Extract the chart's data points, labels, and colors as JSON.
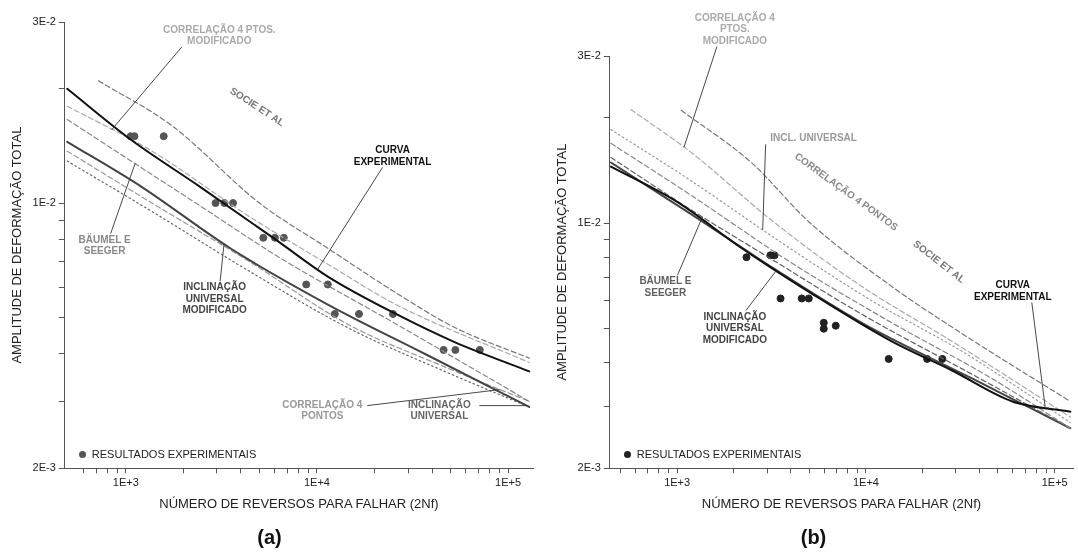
{
  "chart_data": [
    {
      "type": "line",
      "title": "(a)",
      "xlabel": "NÚMERO DE REVERSOS PARA FALHAR (2Nf)",
      "ylabel": "AMPLITUDE DE DEFORMAÇÃO TOTAL",
      "log": "xy",
      "legend": "bottom left",
      "xlim": [
        480,
        135000
      ],
      "ylim": [
        0.002,
        0.03
      ],
      "xticks": [
        {
          "value": 600,
          "label": null
        },
        {
          "value": 700,
          "label": null
        },
        {
          "value": 800,
          "label": null
        },
        {
          "value": 900,
          "label": null
        },
        {
          "value": 1000,
          "label": "1E+3"
        },
        {
          "value": 2000,
          "label": null
        },
        {
          "value": 3000,
          "label": null
        },
        {
          "value": 4000,
          "label": null
        },
        {
          "value": 5000,
          "label": null
        },
        {
          "value": 6000,
          "label": null
        },
        {
          "value": 7000,
          "label": null
        },
        {
          "value": 8000,
          "label": null
        },
        {
          "value": 9000,
          "label": null
        },
        {
          "value": 10000,
          "label": "1E+4"
        },
        {
          "value": 20000,
          "label": null
        },
        {
          "value": 30000,
          "label": null
        },
        {
          "value": 40000,
          "label": null
        },
        {
          "value": 50000,
          "label": null
        },
        {
          "value": 60000,
          "label": null
        },
        {
          "value": 70000,
          "label": null
        },
        {
          "value": 80000,
          "label": null
        },
        {
          "value": 90000,
          "label": null
        },
        {
          "value": 100000,
          "label": "1E+5"
        }
      ],
      "yticks": [
        {
          "value": 0.002,
          "label": "2E-3"
        },
        {
          "value": 0.003,
          "label": null
        },
        {
          "value": 0.004,
          "label": null
        },
        {
          "value": 0.005,
          "label": null
        },
        {
          "value": 0.006,
          "label": null
        },
        {
          "value": 0.007,
          "label": null
        },
        {
          "value": 0.008,
          "label": null
        },
        {
          "value": 0.009,
          "label": null
        },
        {
          "value": 0.01,
          "label": "1E-2"
        },
        {
          "value": 0.02,
          "label": null
        },
        {
          "value": 0.03,
          "label": "3E-2"
        }
      ],
      "series": [
        {
          "name": "CURVA EXPERIMENTAL",
          "type": "line",
          "color": "#111111",
          "line_style": "solid",
          "x": [
            494,
            1060,
            2470,
            6320,
            11400,
            25900,
            52500,
            129000
          ],
          "values": [
            0.02,
            0.0147,
            0.011,
            0.0079,
            0.0064,
            0.0051,
            0.0043,
            0.0036
          ]
        },
        {
          "name": "SOCIE ET AL",
          "type": "line",
          "color": "#777777",
          "line_style": "dashed",
          "x": [
            720,
            1740,
            5000,
            11400,
            25900,
            52500,
            129000
          ],
          "values": [
            0.021,
            0.016,
            0.01,
            0.0076,
            0.0058,
            0.0047,
            0.0039
          ]
        },
        {
          "name": "CORRELAÇÃO 4 PTOS. MODIFICADO",
          "type": "line",
          "color": "#aaaaaa",
          "line_style": "dashed",
          "x": [
            494,
            1370,
            4450,
            11400,
            25900,
            129000
          ],
          "values": [
            0.018,
            0.0137,
            0.0092,
            0.0069,
            0.0054,
            0.0038
          ]
        },
        {
          "name": "BÄUMEL E SEEGER",
          "type": "line",
          "color": "#888888",
          "line_style": "dashed",
          "x": [
            494,
            2470,
            6320,
            25900,
            129000
          ],
          "values": [
            0.0166,
            0.0098,
            0.0072,
            0.0048,
            0.003
          ]
        },
        {
          "name": "INCLINAÇÃO UNIVERSAL MODIFICADO",
          "type": "line",
          "color": "#444444",
          "line_style": "solid",
          "x": [
            494,
            1220,
            3520,
            11400,
            36800,
            129000
          ],
          "values": [
            0.0145,
            0.011,
            0.0076,
            0.0054,
            0.004,
            0.0029
          ]
        },
        {
          "name": "CORRELAÇÃO 4 PONTOS",
          "type": "line",
          "color": "#999999",
          "line_style": "dashed",
          "x": [
            494,
            1370,
            4450,
            14400,
            46500,
            129000
          ],
          "values": [
            0.0137,
            0.01,
            0.007,
            0.0048,
            0.0037,
            0.003
          ]
        },
        {
          "name": "INCLINAÇÃO UNIVERSAL",
          "type": "line",
          "color": "#666666",
          "line_style": "dotted",
          "x": [
            494,
            1370,
            4450,
            14400,
            46500,
            129000
          ],
          "values": [
            0.0129,
            0.0095,
            0.0066,
            0.0047,
            0.0036,
            0.0029
          ]
        },
        {
          "name": "RESULTADOS EXPERIMENTAIS",
          "type": "scatter",
          "color": "#555555",
          "marker": "circle",
          "x": [
            1060,
            1110,
            1580,
            2950,
            3280,
            3640,
            5240,
            6030,
            6710,
            8790,
            11400,
            12400,
            16600,
            25000,
            46000,
            53000,
            71100
          ],
          "values": [
            0.015,
            0.015,
            0.015,
            0.01,
            0.01,
            0.01,
            0.0081,
            0.0081,
            0.0081,
            0.0061,
            0.0061,
            0.0051,
            0.0051,
            0.0051,
            0.0041,
            0.0041,
            0.0041
          ]
        }
      ]
    },
    {
      "type": "line",
      "title": "(b)",
      "xlabel": "NÚMERO DE REVERSOS PARA FALHAR (2Nf)",
      "ylabel": "AMPLITUDE DE DEFORMAÇÃO TOTAL",
      "log": "xy",
      "legend": "bottom left",
      "xlim": [
        440,
        125000
      ],
      "ylim": [
        0.002,
        0.03
      ],
      "xticks": [
        {
          "value": 500,
          "label": null
        },
        {
          "value": 600,
          "label": null
        },
        {
          "value": 700,
          "label": null
        },
        {
          "value": 800,
          "label": null
        },
        {
          "value": 900,
          "label": null
        },
        {
          "value": 1000,
          "label": "1E+3"
        },
        {
          "value": 2000,
          "label": null
        },
        {
          "value": 3000,
          "label": null
        },
        {
          "value": 4000,
          "label": null
        },
        {
          "value": 5000,
          "label": null
        },
        {
          "value": 6000,
          "label": null
        },
        {
          "value": 7000,
          "label": null
        },
        {
          "value": 8000,
          "label": null
        },
        {
          "value": 9000,
          "label": null
        },
        {
          "value": 10000,
          "label": "1E+4"
        },
        {
          "value": 20000,
          "label": null
        },
        {
          "value": 30000,
          "label": null
        },
        {
          "value": 40000,
          "label": null
        },
        {
          "value": 50000,
          "label": null
        },
        {
          "value": 60000,
          "label": null
        },
        {
          "value": 70000,
          "label": null
        },
        {
          "value": 80000,
          "label": null
        },
        {
          "value": 90000,
          "label": null
        },
        {
          "value": 100000,
          "label": "1E+5"
        }
      ],
      "yticks": [
        {
          "value": 0.002,
          "label": "2E-3"
        },
        {
          "value": 0.003,
          "label": null
        },
        {
          "value": 0.004,
          "label": null
        },
        {
          "value": 0.005,
          "label": null
        },
        {
          "value": 0.006,
          "label": null
        },
        {
          "value": 0.007,
          "label": null
        },
        {
          "value": 0.008,
          "label": null
        },
        {
          "value": 0.009,
          "label": null
        },
        {
          "value": 0.01,
          "label": "1E-2"
        },
        {
          "value": 0.02,
          "label": null
        },
        {
          "value": 0.03,
          "label": "3E-2"
        }
      ],
      "series": [
        {
          "name": "CURVA EXPERIMENTAL",
          "type": "line",
          "color": "#111111",
          "line_style": "solid",
          "x": [
            446,
            1000,
            2190,
            5160,
            13700,
            28600,
            59700,
            121000
          ],
          "values": [
            0.0145,
            0.0115,
            0.0085,
            0.0063,
            0.0046,
            0.0038,
            0.0031,
            0.0029
          ]
        },
        {
          "name": "SOCIE ET AL",
          "type": "line",
          "color": "#777777",
          "line_style": "dashed",
          "x": [
            1050,
            2470,
            4980,
            13700,
            31200,
            121000
          ],
          "values": [
            0.021,
            0.0149,
            0.0101,
            0.0066,
            0.0049,
            0.0031
          ]
        },
        {
          "name": "CORRELAÇÃO 4 PTOS. MODIFICADO",
          "type": "line",
          "color": "#aaaaaa",
          "line_style": "dashed",
          "x": [
            569,
            1190,
            3160,
            9500,
            28600,
            121000
          ],
          "values": [
            0.0211,
            0.0159,
            0.0102,
            0.0066,
            0.0046,
            0.0028
          ]
        },
        {
          "name": "INCL. UNIVERSAL",
          "type": "line",
          "color": "#999999",
          "line_style": "dotted",
          "x": [
            446,
            1190,
            3570,
            10800,
            32500,
            121000
          ],
          "values": [
            0.0185,
            0.0132,
            0.0088,
            0.006,
            0.0043,
            0.0027
          ]
        },
        {
          "name": "CORRELAÇÃO 4 PONTOS",
          "type": "line",
          "color": "#888888",
          "line_style": "dashed",
          "x": [
            446,
            1190,
            4040,
            13700,
            46700,
            121000
          ],
          "values": [
            0.0169,
            0.012,
            0.0077,
            0.0052,
            0.0036,
            0.0026
          ]
        },
        {
          "name": "BÄUMEL E SEEGER",
          "type": "line",
          "color": "#606060",
          "line_style": "dashed",
          "x": [
            446,
            1190,
            3160,
            9500,
            36700,
            121000
          ],
          "values": [
            0.0154,
            0.0109,
            0.0079,
            0.0055,
            0.0037,
            0.0026
          ]
        },
        {
          "name": "INCLINAÇÃO UNIVERSAL MODIFICADO",
          "type": "line",
          "color": "#444444",
          "line_style": "solid",
          "x": [
            446,
            1190,
            3160,
            9500,
            36700,
            121000
          ],
          "values": [
            0.0149,
            0.0106,
            0.0075,
            0.0052,
            0.0036,
            0.0026
          ]
        },
        {
          "name": "RESULTADOS EXPERIMENTAIS",
          "type": "scatter",
          "color": "#222222",
          "marker": "circle",
          "x": [
            2330,
            3120,
            3280,
            3530,
            4570,
            4980,
            5980,
            5980,
            6920,
            13200,
            21100,
            25400
          ],
          "values": [
            0.008,
            0.0081,
            0.0081,
            0.0061,
            0.0061,
            0.0061,
            0.0052,
            0.005,
            0.0051,
            0.0041,
            0.0041,
            0.0041
          ]
        }
      ]
    }
  ]
}
